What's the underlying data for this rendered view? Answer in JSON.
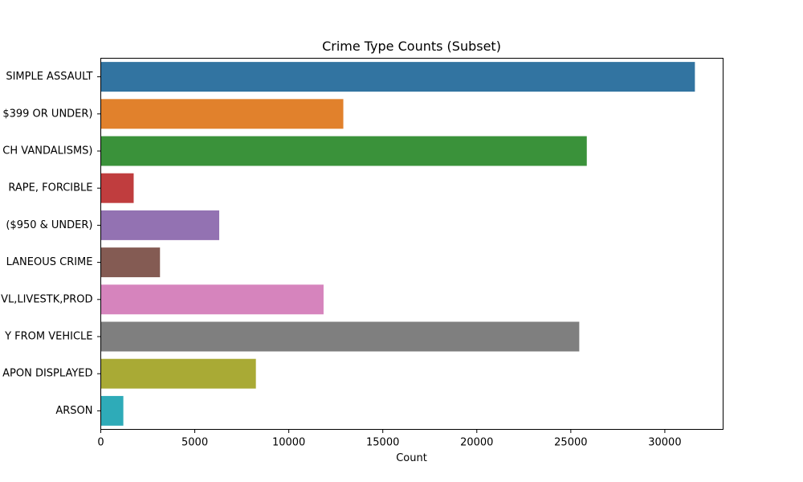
{
  "chart_data": {
    "type": "bar",
    "orientation": "horizontal",
    "title": "Crime Type Counts (Subset)",
    "xlabel": "Count",
    "ylabel": "",
    "xlim": [
      0,
      33100
    ],
    "xticks": [
      0,
      5000,
      10000,
      15000,
      20000,
      25000,
      30000
    ],
    "grid": false,
    "legend": "none",
    "categories": [
      "SIMPLE ASSAULT",
      "$399 OR UNDER)",
      "CH VANDALISMS)",
      "RAPE, FORCIBLE",
      "($950 & UNDER)",
      "LANEOUS CRIME",
      "VL,LIVESTK,PROD",
      "Y FROM VEHICLE",
      "APON DISPLAYED",
      "ARSON"
    ],
    "values": [
      31600,
      12900,
      25850,
      1750,
      6300,
      3150,
      11850,
      25450,
      8250,
      1200
    ],
    "colors": [
      "#3274a1",
      "#e1812c",
      "#3a923a",
      "#c03d3e",
      "#9372b2",
      "#845b53",
      "#d684bd",
      "#7f7f7f",
      "#a9aa35",
      "#2eabb8"
    ]
  }
}
